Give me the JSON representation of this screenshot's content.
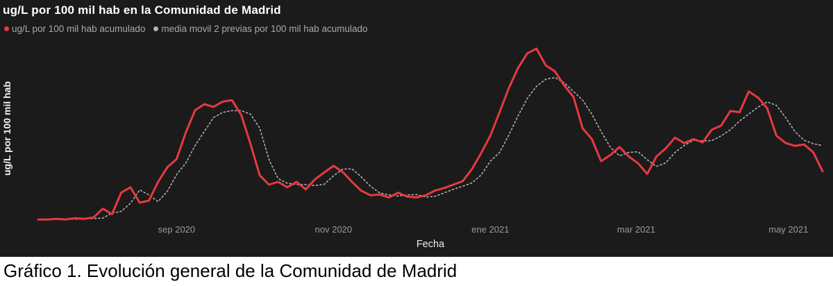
{
  "caption": "Gráfico 1. Evolución general de la Comunidad de Madrid",
  "chart_data": {
    "type": "line",
    "title": "ug/L por 100 mil hab en la Comunidad de Madrid",
    "xlabel": "Fecha",
    "ylabel": "ug/L por 100 mil hab",
    "x_tick_labels": [
      "sep 2020",
      "nov 2020",
      "ene 2021",
      "mar 2021",
      "may 2021"
    ],
    "x_tick_indices": [
      15,
      32,
      49,
      64.8,
      81.3
    ],
    "ylim": [
      0,
      102
    ],
    "grid": false,
    "legend_position": "top-left",
    "background_color": "#1b1b1b",
    "tick_color": "#9b9b9b",
    "y_axis_tick_labels_visible": false,
    "value_units": "relative scale 0-100 (no numeric y ticks shown)",
    "series": [
      {
        "name": "ug/L por 100 mil hab acumulado",
        "color": "#e8393f",
        "style": "solid",
        "values": [
          1.5,
          1.5,
          1.9,
          1.5,
          2.3,
          1.9,
          2.7,
          7.7,
          4.6,
          16.9,
          20,
          11.2,
          12.3,
          23.1,
          31.5,
          36.2,
          51.5,
          64.2,
          67.7,
          66.2,
          69.2,
          70,
          61.5,
          45,
          26.9,
          21.5,
          23.1,
          20,
          23.1,
          18.8,
          24.6,
          28.5,
          32.3,
          28.8,
          23.1,
          18.1,
          15.4,
          15.8,
          14.2,
          16.9,
          14.6,
          14.2,
          15.4,
          18.1,
          19.6,
          21.5,
          23.5,
          30.4,
          39.6,
          49.6,
          63.1,
          76.9,
          88.5,
          96.9,
          99.6,
          90,
          86.5,
          78.5,
          71.9,
          53.8,
          47.7,
          35,
          38.5,
          43.1,
          37.7,
          33.8,
          27.7,
          37.7,
          42.3,
          48.5,
          45.4,
          47.7,
          45.8,
          53.1,
          55.4,
          63.8,
          63.1,
          75,
          71.5,
          65.4,
          49.6,
          45.4,
          43.8,
          44.6,
          40,
          29.2
        ]
      },
      {
        "name": "media movil 2 previas por 100 mil hab acumulado",
        "color": "#b3b3b3",
        "style": "dotted",
        "values": [
          null,
          null,
          1.5,
          1.7,
          1.7,
          1.9,
          2.1,
          2.3,
          5.2,
          6.2,
          10.8,
          18.5,
          15.6,
          11.8,
          17.7,
          27.3,
          33.9,
          43.9,
          52,
          60,
          63,
          64,
          64,
          62,
          54,
          36,
          25,
          22.3,
          21.6,
          21.6,
          21,
          21.7,
          26.6,
          30.4,
          30.6,
          26,
          20.6,
          16.8,
          15.6,
          15,
          15.6,
          15.8,
          14.4,
          14.8,
          16.8,
          18.9,
          20.6,
          22.5,
          27,
          35,
          40,
          50,
          61,
          71,
          78,
          82,
          83,
          80,
          75,
          70,
          62,
          52,
          43,
          38,
          40,
          40.4,
          35.8,
          32,
          34,
          40,
          44,
          47,
          46.6,
          46.8,
          49.5,
          53,
          58,
          62,
          66,
          69,
          67,
          60,
          52,
          47,
          45,
          44
        ]
      }
    ]
  }
}
